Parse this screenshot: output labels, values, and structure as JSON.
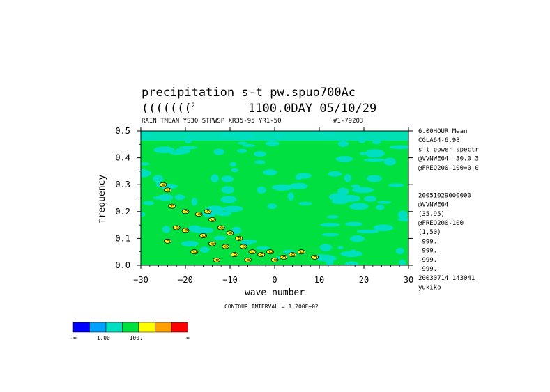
{
  "title_line1": "precipitation s-t pw.spuo700Ac",
  "title_line2_prefix": "(((((((",
  "title_line2_sup": "2",
  "title_line2_suffix": "1100.0DAY 05/10/29",
  "subtitle_left": "RAIN TMEAN YS30 STPWSP XR35-95 YR1-50",
  "subtitle_right": "#1-79203",
  "side_info": [
    "6.00HOUR Mean",
    "CGLA64-6.98",
    "s-t power spectr",
    "@VVNWE64--30.0-3",
    "@FREQ200-100=0.0",
    "",
    "",
    "20051029000000",
    "@VVNWE64",
    "(35,95)",
    "@FREQ200-100",
    "(1,50)",
    "-999.",
    "-999.",
    "-999.",
    "-999.",
    "20030714 143041",
    "yukiko"
  ],
  "contour_interval_label": "CONTOUR INTERVAL = 1.200E+02",
  "colorbar": {
    "colors": [
      "#0000ff",
      "#00a0ff",
      "#00e0c0",
      "#00e040",
      "#ffff00",
      "#ffa000",
      "#ff0000"
    ],
    "labels": [
      "-∞",
      "1.00",
      "100.",
      "∞"
    ]
  },
  "chart_data": {
    "type": "heatmap",
    "xlabel": "wave number",
    "ylabel": "frequency",
    "xlim": [
      -30,
      30
    ],
    "ylim": [
      0.0,
      0.5
    ],
    "x_ticks": [
      -30,
      -20,
      -10,
      0,
      10,
      20,
      30
    ],
    "y_ticks": [
      0.0,
      0.1,
      0.2,
      0.3,
      0.4,
      0.5
    ],
    "x_tick_labels": [
      "−30",
      "−20",
      "−10",
      "0",
      "10",
      "20",
      "30"
    ],
    "y_tick_labels": [
      "0.0",
      "0.1",
      "0.2",
      "0.3",
      "0.4",
      "0.5"
    ],
    "background_level_color": "#00e040",
    "low_level_color": "#00e0c0",
    "hot_spots": [
      {
        "x": -25,
        "y": 0.3,
        "level": "yellow"
      },
      {
        "x": -24,
        "y": 0.28,
        "level": "yellow"
      },
      {
        "x": -23,
        "y": 0.22,
        "level": "yellow"
      },
      {
        "x": -20,
        "y": 0.2,
        "level": "yellow"
      },
      {
        "x": -22,
        "y": 0.14,
        "level": "yellow"
      },
      {
        "x": -20,
        "y": 0.13,
        "level": "yellow"
      },
      {
        "x": -17,
        "y": 0.19,
        "level": "yellow"
      },
      {
        "x": -15,
        "y": 0.2,
        "level": "yellow"
      },
      {
        "x": -14,
        "y": 0.17,
        "level": "yellow"
      },
      {
        "x": -12,
        "y": 0.14,
        "level": "yellow"
      },
      {
        "x": -10,
        "y": 0.12,
        "level": "yellow"
      },
      {
        "x": -8,
        "y": 0.1,
        "level": "yellow"
      },
      {
        "x": -14,
        "y": 0.08,
        "level": "yellow"
      },
      {
        "x": -11,
        "y": 0.07,
        "level": "yellow"
      },
      {
        "x": -7,
        "y": 0.07,
        "level": "yellow"
      },
      {
        "x": -5,
        "y": 0.05,
        "level": "yellow"
      },
      {
        "x": -3,
        "y": 0.04,
        "level": "yellow"
      },
      {
        "x": -1,
        "y": 0.05,
        "level": "yellow"
      },
      {
        "x": 2,
        "y": 0.03,
        "level": "yellow"
      },
      {
        "x": 4,
        "y": 0.04,
        "level": "yellow"
      },
      {
        "x": 6,
        "y": 0.05,
        "level": "yellow"
      },
      {
        "x": -18,
        "y": 0.05,
        "level": "yellow"
      },
      {
        "x": -24,
        "y": 0.09,
        "level": "yellow"
      },
      {
        "x": -13,
        "y": 0.02,
        "level": "yellow"
      },
      {
        "x": -6,
        "y": 0.02,
        "level": "yellow"
      },
      {
        "x": 0,
        "y": 0.02,
        "level": "yellow"
      },
      {
        "x": -9,
        "y": 0.04,
        "level": "yellow"
      },
      {
        "x": -16,
        "y": 0.11,
        "level": "yellow"
      },
      {
        "x": 9,
        "y": 0.03,
        "level": "yellow"
      }
    ]
  }
}
